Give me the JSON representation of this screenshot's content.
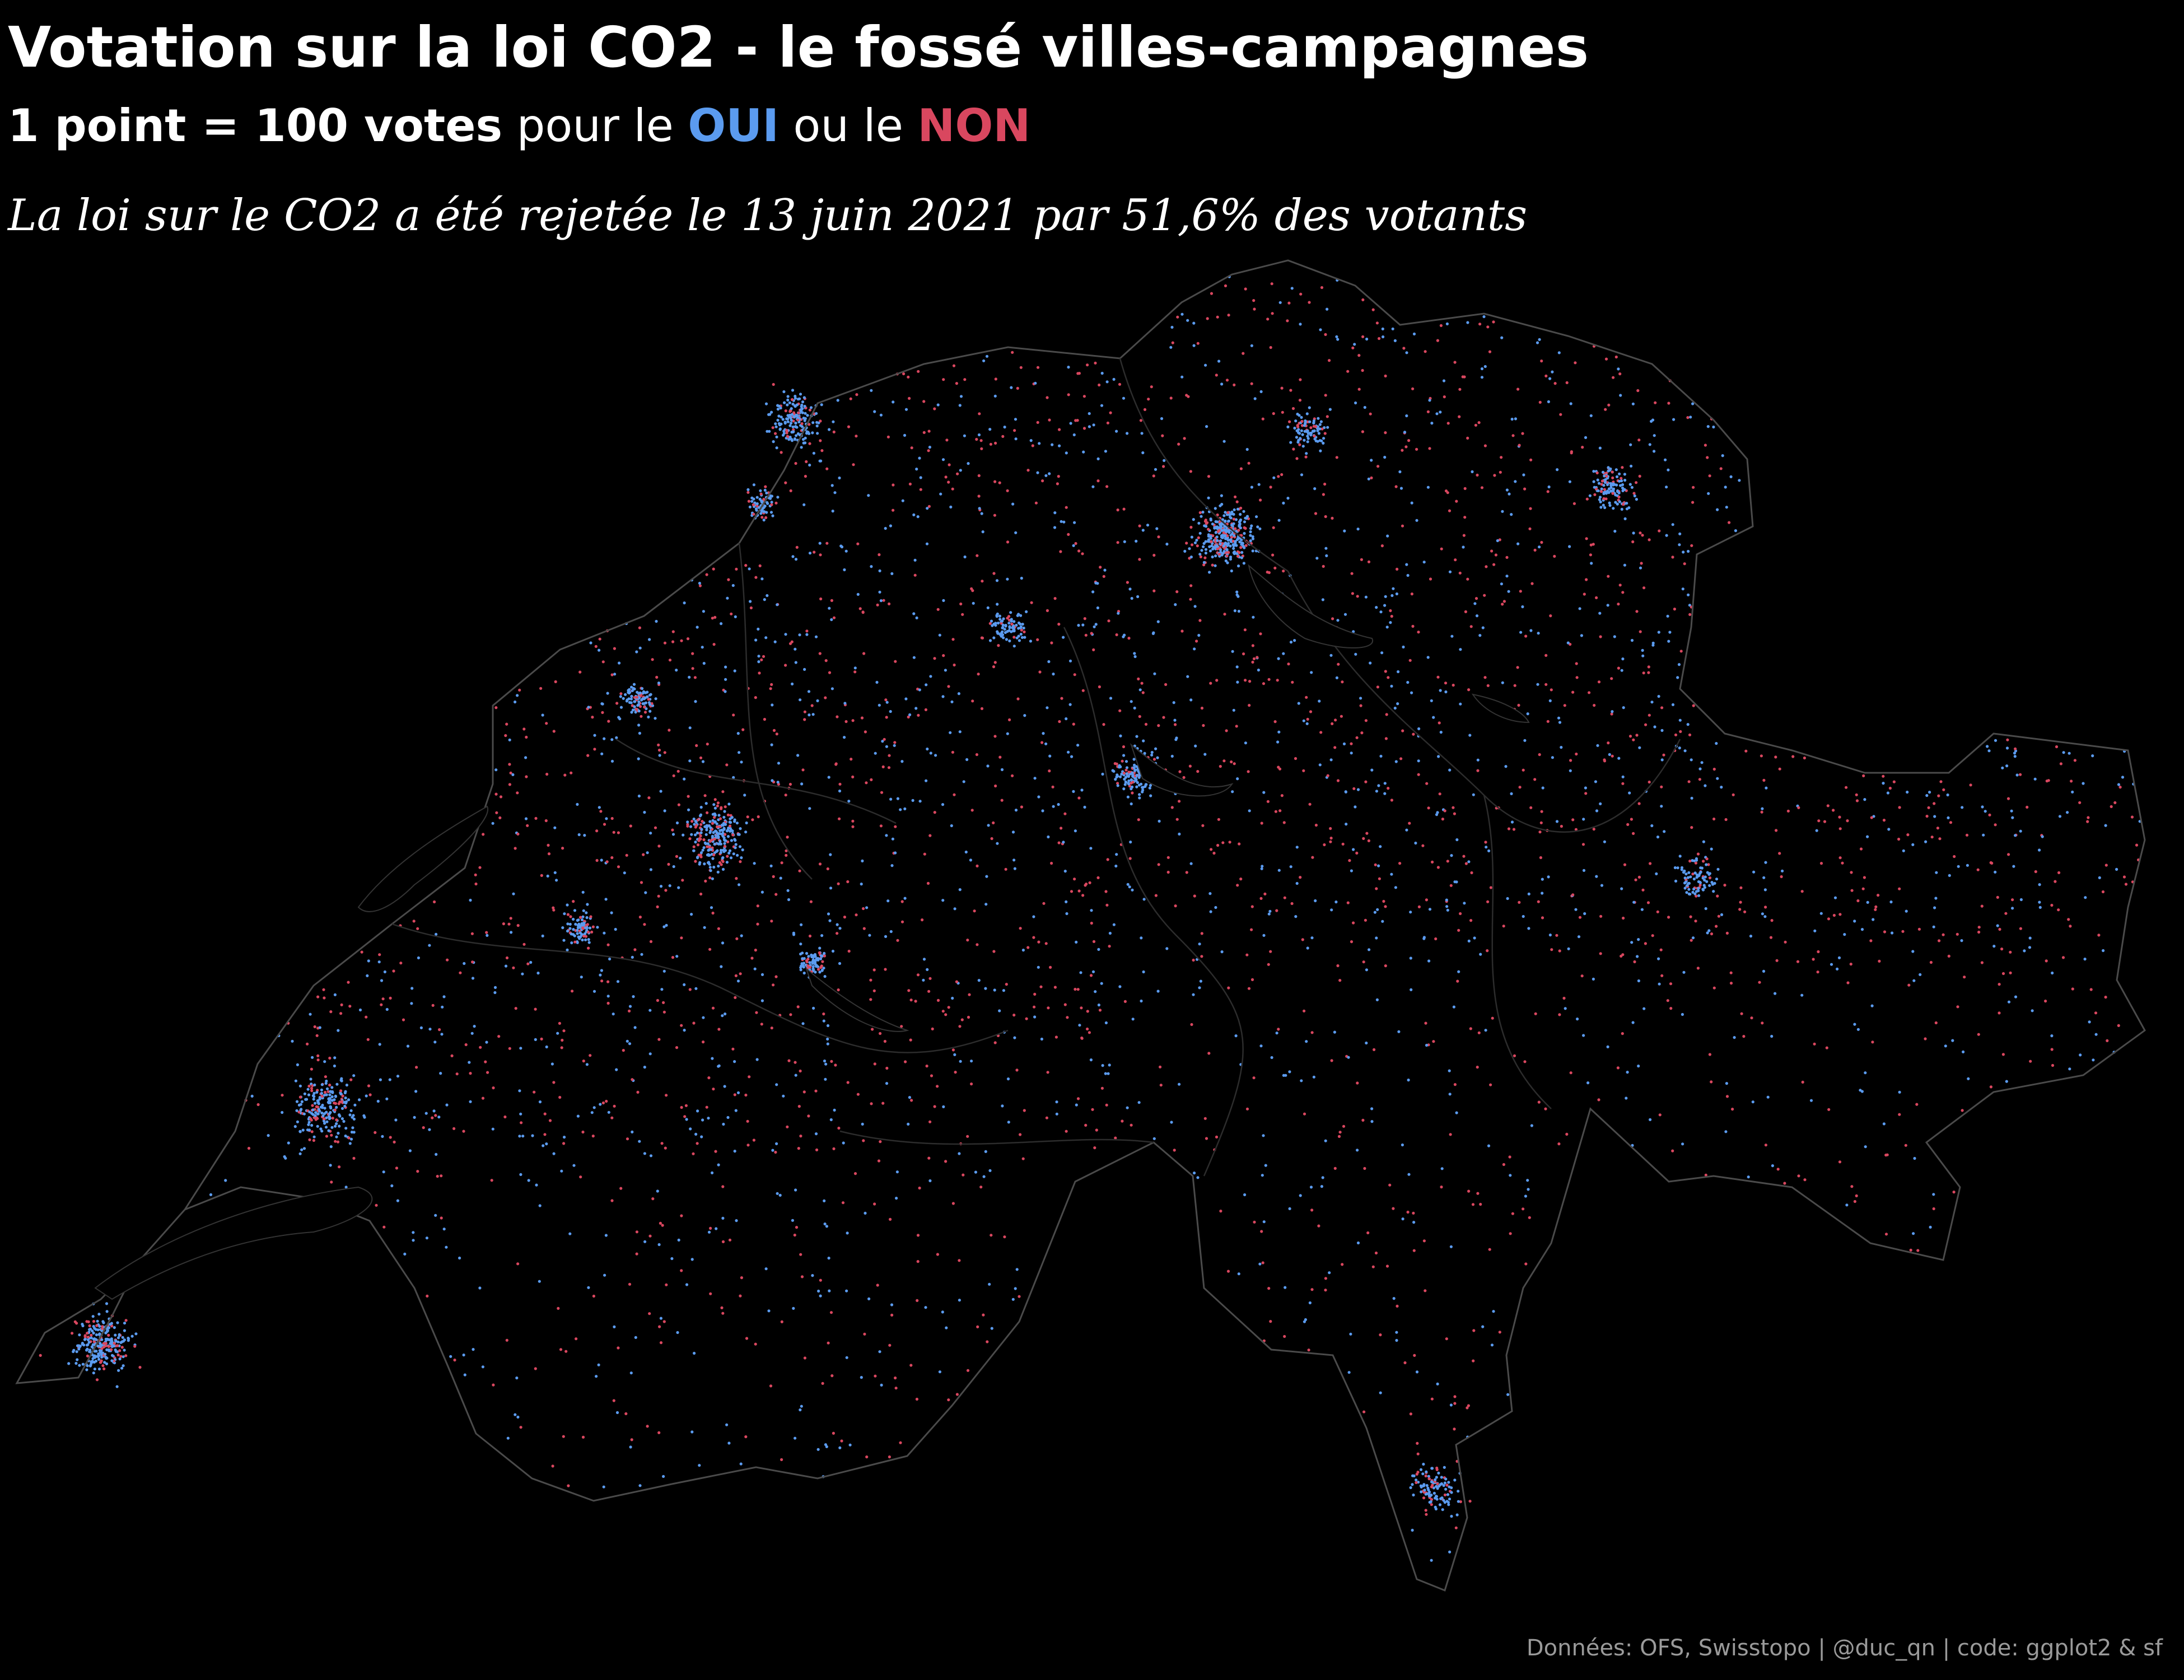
{
  "header": {
    "title": "Votation sur la loi CO2 - le fossé villes-campagnes",
    "subtitle_prefix": "1 point = 100 votes",
    "subtitle_mid": " pour le ",
    "subtitle_yes": "OUI",
    "subtitle_or": " ou le ",
    "subtitle_no": "NON",
    "lead": "La loi sur le CO2 a été rejetée le 13 juin 2021 par 51,6% des votants"
  },
  "caption": "Données: OFS, Swisstopo | @duc_qn | code: ggplot2 & sf",
  "colors": {
    "background": "#000000",
    "oui": "#5b9bef",
    "non": "#d9475f",
    "border": "#4a4a4a",
    "lake": "#000000"
  },
  "map": {
    "subject": "Switzerland",
    "result_no_percent": 51.6,
    "dot_unit_votes": 100
  }
}
